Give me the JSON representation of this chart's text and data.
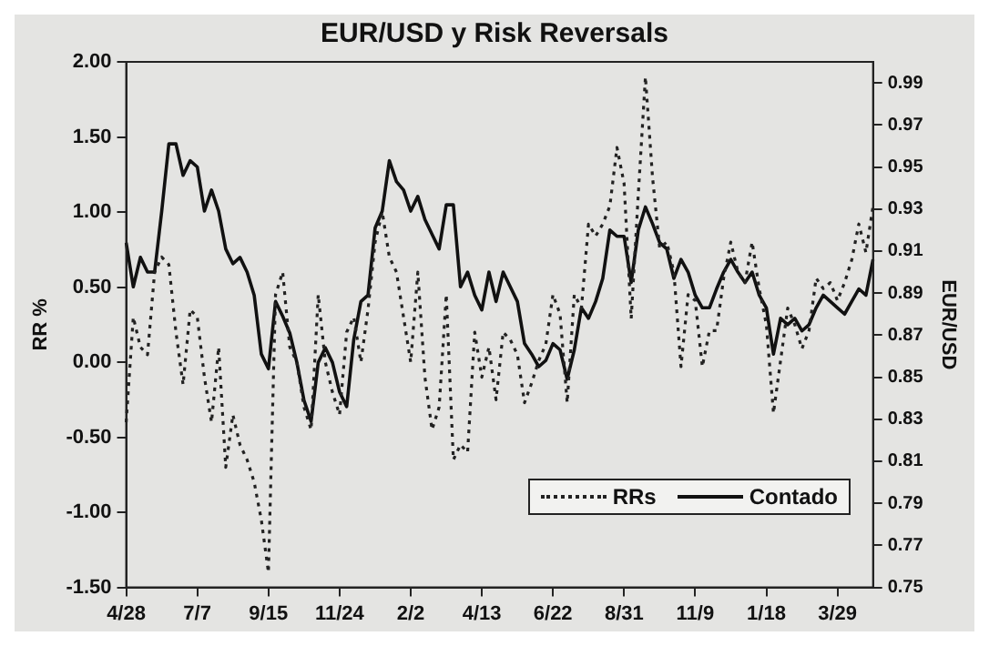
{
  "chart_data": {
    "type": "line",
    "title": "EUR/USD y Risk Reversals",
    "ylabel": "RR %",
    "y2label": "EUR/USD",
    "categories": [
      "4/28",
      null,
      null,
      null,
      null,
      null,
      null,
      null,
      null,
      null,
      "7/7",
      null,
      null,
      null,
      null,
      null,
      null,
      null,
      null,
      null,
      "9/15",
      null,
      null,
      null,
      null,
      null,
      null,
      null,
      null,
      null,
      "11/24",
      null,
      null,
      null,
      null,
      null,
      null,
      null,
      null,
      null,
      "2/2",
      null,
      null,
      null,
      null,
      null,
      null,
      null,
      null,
      null,
      "4/13",
      null,
      null,
      null,
      null,
      null,
      null,
      null,
      null,
      null,
      "6/22",
      null,
      null,
      null,
      null,
      null,
      null,
      null,
      null,
      null,
      "8/31",
      null,
      null,
      null,
      null,
      null,
      null,
      null,
      null,
      null,
      "11/9",
      null,
      null,
      null,
      null,
      null,
      null,
      null,
      null,
      null,
      "1/18",
      null,
      null,
      null,
      null,
      null,
      null,
      null,
      null,
      null,
      "3/29",
      null,
      null,
      null,
      null,
      null
    ],
    "series": [
      {
        "name": "RRs",
        "color": "#222222",
        "line_style": "dotted",
        "values": [
          -0.4,
          0.3,
          0.1,
          0.05,
          0.6,
          0.7,
          0.65,
          0.2,
          -0.15,
          0.35,
          0.3,
          -0.1,
          -0.4,
          0.1,
          -0.7,
          -0.35,
          -0.55,
          -0.65,
          -0.8,
          -1.05,
          -1.4,
          0.45,
          0.6,
          0.1,
          0.0,
          -0.3,
          -0.45,
          0.45,
          0.0,
          -0.2,
          -0.35,
          0.2,
          0.3,
          0.0,
          0.35,
          0.8,
          1.0,
          0.7,
          0.6,
          0.3,
          0.0,
          0.6,
          -0.1,
          -0.45,
          -0.3,
          0.45,
          -0.65,
          -0.55,
          -0.6,
          0.2,
          -0.1,
          0.1,
          -0.25,
          0.2,
          0.15,
          0.05,
          -0.27,
          -0.14,
          0.01,
          0.12,
          0.45,
          0.32,
          -0.27,
          0.45,
          0.36,
          0.92,
          0.84,
          0.92,
          1.04,
          1.43,
          1.19,
          0.29,
          1.12,
          1.9,
          1.23,
          0.76,
          0.8,
          0.6,
          -0.03,
          0.45,
          0.41,
          -0.03,
          0.21,
          0.21,
          0.56,
          0.8,
          0.6,
          0.53,
          0.8,
          0.49,
          0.25,
          -0.34,
          0.01,
          0.36,
          0.25,
          0.09,
          0.21,
          0.56,
          0.49,
          0.53,
          0.41,
          0.53,
          0.68,
          0.92,
          0.73,
          1.04
        ]
      },
      {
        "name": "Contado",
        "color": "#111111",
        "line_style": "solid",
        "axis": "y2",
        "values": [
          0.914,
          0.893,
          0.907,
          0.9,
          0.9,
          0.929,
          0.961,
          0.961,
          0.946,
          0.953,
          0.95,
          0.929,
          0.939,
          0.929,
          0.911,
          0.904,
          0.907,
          0.9,
          0.889,
          0.861,
          0.854,
          0.886,
          0.879,
          0.871,
          0.857,
          0.839,
          0.829,
          0.857,
          0.864,
          0.857,
          0.843,
          0.836,
          0.868,
          0.886,
          0.889,
          0.921,
          0.929,
          0.953,
          0.943,
          0.939,
          0.929,
          0.936,
          0.925,
          0.918,
          0.911,
          0.932,
          0.932,
          0.893,
          0.9,
          0.889,
          0.882,
          0.9,
          0.886,
          0.9,
          0.893,
          0.886,
          0.866,
          0.861,
          0.855,
          0.858,
          0.866,
          0.863,
          0.849,
          0.863,
          0.883,
          0.878,
          0.886,
          0.897,
          0.92,
          0.917,
          0.917,
          0.895,
          0.92,
          0.931,
          0.923,
          0.914,
          0.911,
          0.897,
          0.906,
          0.9,
          0.889,
          0.883,
          0.883,
          0.892,
          0.9,
          0.906,
          0.9,
          0.895,
          0.9,
          0.889,
          0.883,
          0.861,
          0.878,
          0.875,
          0.878,
          0.872,
          0.875,
          0.883,
          0.889,
          0.886,
          0.883,
          0.88,
          0.886,
          0.892,
          0.889,
          0.906
        ]
      }
    ],
    "ylim": [
      -1.5,
      2.0
    ],
    "yticks": [
      {
        "value": -1.5,
        "label": "-1.50"
      },
      {
        "value": -1.0,
        "label": "-1.00"
      },
      {
        "value": -0.5,
        "label": "-0.50"
      },
      {
        "value": 0,
        "label": "0.00"
      },
      {
        "value": 0.5,
        "label": "0.50"
      },
      {
        "value": 1.0,
        "label": "1.00"
      },
      {
        "value": 1.5,
        "label": "1.50"
      },
      {
        "value": 2.0,
        "label": "2.00"
      }
    ],
    "y2lim": [
      0.75,
      1.0
    ],
    "y2ticks": [
      0.75,
      0.77,
      0.79,
      0.81,
      0.83,
      0.85,
      0.87,
      0.89,
      0.91,
      0.93,
      0.95,
      0.97,
      0.99
    ],
    "grid": false,
    "legend": "bottom right"
  }
}
